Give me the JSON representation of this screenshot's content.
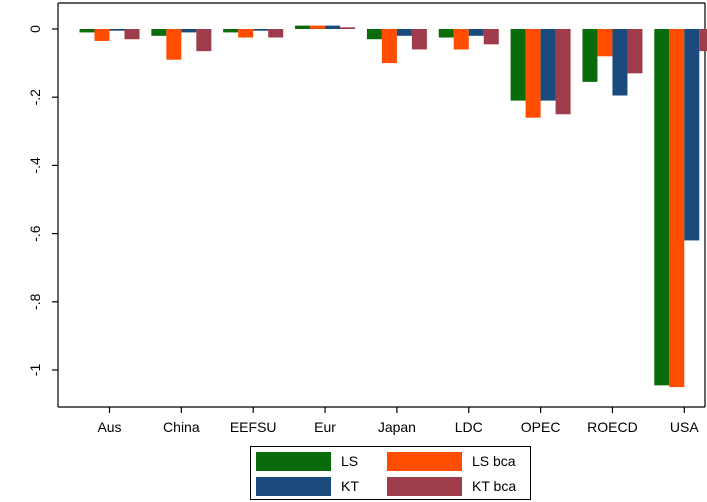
{
  "chart_data": {
    "type": "bar",
    "categories": [
      "Aus",
      "China",
      "EEFSU",
      "Eur",
      "Japan",
      "LDC",
      "OPEC",
      "ROECD",
      "USA"
    ],
    "series": [
      {
        "name": "LS",
        "color": "#0a6b0a",
        "values": [
          -0.01,
          -0.02,
          -0.01,
          0.01,
          -0.03,
          -0.025,
          -0.21,
          -0.155,
          -1.045
        ]
      },
      {
        "name": "LS bca",
        "color": "#ff4d00",
        "values": [
          -0.035,
          -0.09,
          -0.025,
          0.01,
          -0.1,
          -0.06,
          -0.26,
          -0.08,
          -1.05
        ]
      },
      {
        "name": "KT",
        "color": "#1b4b7c",
        "values": [
          -0.005,
          -0.01,
          -0.005,
          0.01,
          -0.02,
          -0.02,
          -0.21,
          -0.195,
          -0.62
        ]
      },
      {
        "name": "KT bca",
        "color": "#9e3c4b",
        "values": [
          -0.03,
          -0.065,
          -0.025,
          0.005,
          -0.06,
          -0.045,
          -0.25,
          -0.13,
          -0.065
        ]
      }
    ],
    "y_ticks": [
      0,
      -0.2,
      -0.4,
      -0.6,
      -0.8,
      -1
    ],
    "y_tick_labels": [
      "0",
      "-.2",
      "-.4",
      "-.6",
      "-.8",
      "-1"
    ],
    "ylim": [
      -1.1,
      0.07
    ],
    "grid": false,
    "legend_position": "bottom",
    "legend_order": [
      0,
      1,
      2,
      3
    ]
  }
}
